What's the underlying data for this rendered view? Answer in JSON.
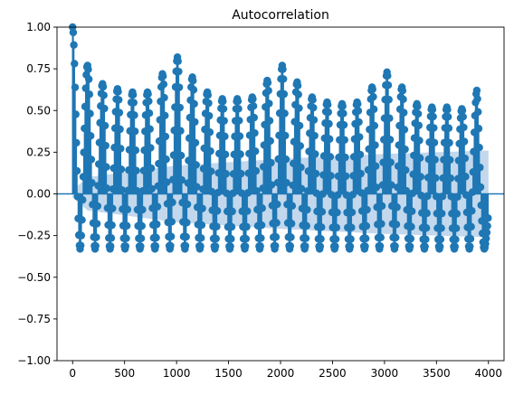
{
  "chart_data": {
    "type": "scatter",
    "subtype": "acf-stem",
    "title": "Autocorrelation",
    "xlabel": "",
    "ylabel": "",
    "xlim": [
      -150,
      4150
    ],
    "ylim": [
      -1.0,
      1.0
    ],
    "x_ticks": [
      0,
      500,
      1000,
      1500,
      2000,
      2500,
      3000,
      3500,
      4000
    ],
    "y_ticks": [
      -1.0,
      -0.75,
      -0.5,
      -0.25,
      0.0,
      0.25,
      0.5,
      0.75,
      1.0
    ],
    "y_tick_labels": [
      "−1.00",
      "−0.75",
      "−0.50",
      "−0.25",
      "0.00",
      "0.25",
      "0.50",
      "0.75",
      "1.00"
    ],
    "x_tick_labels": [
      "0",
      "500",
      "1000",
      "1500",
      "2000",
      "2500",
      "3000",
      "3500",
      "4000"
    ],
    "grid": false,
    "legend": "none",
    "max_lag": 4000,
    "colors": {
      "marker": "#1f77b4",
      "confidence_band": "#bcd4ea",
      "zero_line": "#1f77b4"
    },
    "cycle_period": 144,
    "peaks": [
      {
        "lag": 0,
        "acf": 1.0
      },
      {
        "lag": 144,
        "acf": 0.77
      },
      {
        "lag": 288,
        "acf": 0.66
      },
      {
        "lag": 432,
        "acf": 0.63
      },
      {
        "lag": 576,
        "acf": 0.61
      },
      {
        "lag": 720,
        "acf": 0.61
      },
      {
        "lag": 864,
        "acf": 0.72
      },
      {
        "lag": 1008,
        "acf": 0.82
      },
      {
        "lag": 1152,
        "acf": 0.7
      },
      {
        "lag": 1296,
        "acf": 0.61
      },
      {
        "lag": 1440,
        "acf": 0.57
      },
      {
        "lag": 1584,
        "acf": 0.57
      },
      {
        "lag": 1728,
        "acf": 0.58
      },
      {
        "lag": 1872,
        "acf": 0.68
      },
      {
        "lag": 2016,
        "acf": 0.77
      },
      {
        "lag": 2160,
        "acf": 0.67
      },
      {
        "lag": 2304,
        "acf": 0.58
      },
      {
        "lag": 2448,
        "acf": 0.55
      },
      {
        "lag": 2592,
        "acf": 0.54
      },
      {
        "lag": 2736,
        "acf": 0.55
      },
      {
        "lag": 2880,
        "acf": 0.64
      },
      {
        "lag": 3024,
        "acf": 0.73
      },
      {
        "lag": 3168,
        "acf": 0.64
      },
      {
        "lag": 3312,
        "acf": 0.54
      },
      {
        "lag": 3456,
        "acf": 0.52
      },
      {
        "lag": 3600,
        "acf": 0.52
      },
      {
        "lag": 3744,
        "acf": 0.51
      },
      {
        "lag": 3888,
        "acf": 0.62
      },
      {
        "lag": 3988,
        "acf": 0.04
      }
    ],
    "trough_acf": -0.33,
    "confidence_band": [
      {
        "lag": 0,
        "upper": 0.02
      },
      {
        "lag": 144,
        "upper": 0.1
      },
      {
        "lag": 1000,
        "upper": 0.17
      },
      {
        "lag": 2000,
        "upper": 0.21
      },
      {
        "lag": 3000,
        "upper": 0.24
      },
      {
        "lag": 4000,
        "upper": 0.26
      }
    ]
  }
}
